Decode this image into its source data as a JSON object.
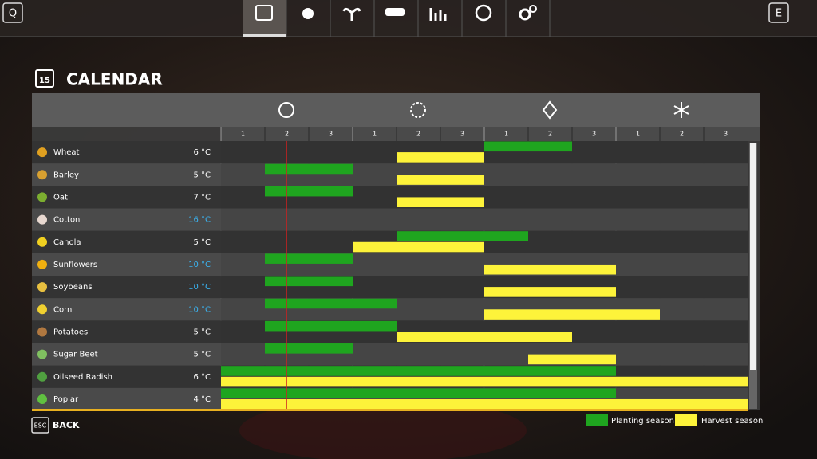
{
  "top_bar": {
    "left_key": "Q",
    "right_key": "E"
  },
  "header": {
    "icon_day": "15",
    "title": "CALENDAR"
  },
  "calendar": {
    "periods": [
      1,
      2,
      3,
      1,
      2,
      3,
      1,
      2,
      3,
      1,
      2,
      3
    ],
    "crops": [
      {
        "name": "Wheat",
        "temperature": "6 °C",
        "temp_color": "#ffffff",
        "icon_color": "#e0a020",
        "planting": [
          7,
          8
        ],
        "harvest": [
          5,
          6
        ]
      },
      {
        "name": "Barley",
        "temperature": "5 °C",
        "temp_color": "#ffffff",
        "icon_color": "#d8a030",
        "planting": [
          2,
          3
        ],
        "harvest": [
          5,
          6
        ]
      },
      {
        "name": "Oat",
        "temperature": "7 °C",
        "temp_color": "#ffffff",
        "icon_color": "#7cae30",
        "planting": [
          2,
          3
        ],
        "harvest": [
          5,
          6
        ]
      },
      {
        "name": "Cotton",
        "temperature": "16 °C",
        "temp_color": "#3ab4f2",
        "icon_color": "#e8d8d0",
        "planting": null,
        "harvest": null
      },
      {
        "name": "Canola",
        "temperature": "5 °C",
        "temp_color": "#ffffff",
        "icon_color": "#f0d020",
        "planting": [
          5,
          7
        ],
        "harvest": [
          4,
          6
        ]
      },
      {
        "name": "Sunflowers",
        "temperature": "10 °C",
        "temp_color": "#3ab4f2",
        "icon_color": "#f0b010",
        "planting": [
          2,
          3
        ],
        "harvest": [
          7,
          9
        ]
      },
      {
        "name": "Soybeans",
        "temperature": "10 °C",
        "temp_color": "#3ab4f2",
        "icon_color": "#e8c040",
        "planting": [
          2,
          3
        ],
        "harvest": [
          7,
          9
        ]
      },
      {
        "name": "Corn",
        "temperature": "10 °C",
        "temp_color": "#3ab4f2",
        "icon_color": "#f0d030",
        "planting": [
          2,
          4
        ],
        "harvest": [
          7,
          10
        ]
      },
      {
        "name": "Potatoes",
        "temperature": "5 °C",
        "temp_color": "#ffffff",
        "icon_color": "#b07840",
        "planting": [
          2,
          4
        ],
        "harvest": [
          5,
          8
        ]
      },
      {
        "name": "Sugar Beet",
        "temperature": "5 °C",
        "temp_color": "#ffffff",
        "icon_color": "#80c060",
        "planting": [
          2,
          3
        ],
        "harvest": [
          8,
          9
        ]
      },
      {
        "name": "Oilseed Radish",
        "temperature": "6 °C",
        "temp_color": "#ffffff",
        "icon_color": "#50a040",
        "planting": [
          1,
          9
        ],
        "harvest": [
          1,
          12
        ]
      },
      {
        "name": "Poplar",
        "temperature": "4 °C",
        "temp_color": "#ffffff",
        "icon_color": "#60c040",
        "planting": [
          1,
          9
        ],
        "harvest": [
          1,
          12
        ]
      }
    ]
  },
  "legend": {
    "planting": {
      "label": "Planting season",
      "color": "#1fa51f"
    },
    "harvest": {
      "label": "Harvest season",
      "color": "#fdf33a"
    }
  },
  "footer": {
    "key": "ESC",
    "label": "BACK"
  }
}
